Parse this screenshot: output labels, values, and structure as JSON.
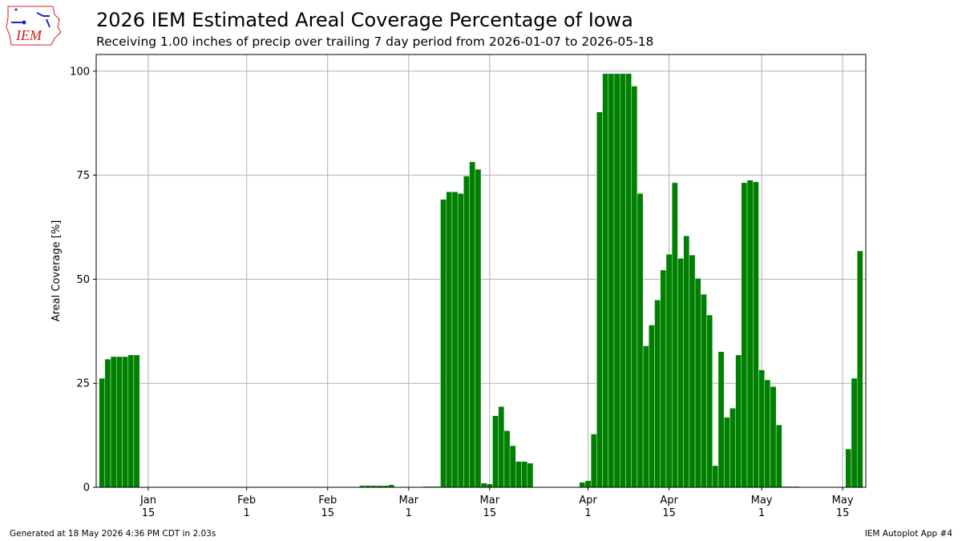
{
  "header": {
    "title": "2026 IEM Estimated Areal Coverage Percentage of Iowa",
    "subtitle": "Receiving 1.00 inches of precip over trailing 7 day period from 2026-01-07 to 2026-05-18"
  },
  "logo": {
    "text": "IEM",
    "icon": "iem-iowa-logo"
  },
  "footer": {
    "left": "Generated at 18 May 2026 4:36 PM CDT in 2.03s",
    "right": "IEM Autoplot App #4"
  },
  "colors": {
    "bar": "#008000",
    "grid": "#b0b0b0",
    "logo": "#cc2222",
    "logo_icon": "#2222cc"
  },
  "chart_data": {
    "type": "bar",
    "ylabel": "Areal Coverage [%]",
    "xlabel": "",
    "ylim": [
      0,
      104
    ],
    "xlim": [
      "2026-01-06",
      "2026-05-19"
    ],
    "grid": true,
    "yticks": [
      0,
      25,
      50,
      75,
      100
    ],
    "xticks": [
      {
        "date": "2026-01-15",
        "line1": "Jan",
        "line2": "15"
      },
      {
        "date": "2026-02-01",
        "line1": "Feb",
        "line2": "1"
      },
      {
        "date": "2026-02-15",
        "line1": "Feb",
        "line2": "15"
      },
      {
        "date": "2026-03-01",
        "line1": "Mar",
        "line2": "1"
      },
      {
        "date": "2026-03-15",
        "line1": "Mar",
        "line2": "15"
      },
      {
        "date": "2026-04-01",
        "line1": "Apr",
        "line2": "1"
      },
      {
        "date": "2026-04-15",
        "line1": "Apr",
        "line2": "15"
      },
      {
        "date": "2026-05-01",
        "line1": "May",
        "line2": "1"
      },
      {
        "date": "2026-05-15",
        "line1": "May",
        "line2": "15"
      }
    ],
    "start_date": "2026-01-07",
    "end_date": "2026-05-18",
    "values": [
      26.2,
      30.8,
      31.4,
      31.4,
      31.4,
      31.8,
      31.8,
      0.1,
      0.1,
      0.1,
      0.1,
      0.1,
      0.1,
      0.1,
      0.1,
      0.1,
      0.1,
      0.1,
      0.1,
      0.1,
      0.1,
      0.1,
      0.1,
      0.1,
      0.1,
      0.1,
      0.1,
      0.1,
      0.1,
      0.1,
      0.1,
      0.1,
      0.1,
      0.1,
      0.1,
      0.1,
      0.1,
      0.1,
      0.1,
      0.1,
      0.1,
      0.1,
      0.1,
      0.1,
      0.1,
      0.4,
      0.4,
      0.4,
      0.4,
      0.4,
      0.6,
      0.0,
      0.0,
      0.0,
      0.0,
      0.0,
      0.2,
      0.2,
      0.2,
      69.2,
      71.0,
      71.0,
      70.6,
      74.8,
      78.2,
      76.4,
      1.0,
      0.8,
      17.2,
      19.4,
      13.6,
      10.0,
      6.2,
      6.2,
      5.8,
      0.0,
      0.0,
      0.0,
      0.0,
      0.0,
      0.0,
      0.0,
      0.0,
      1.2,
      1.6,
      12.8,
      90.2,
      99.4,
      99.4,
      99.4,
      99.4,
      99.4,
      96.4,
      70.6,
      34.0,
      39.0,
      45.0,
      52.2,
      56.0,
      73.2,
      55.0,
      60.4,
      55.8,
      50.2,
      46.4,
      41.4,
      5.2,
      32.6,
      16.8,
      19.0,
      31.8,
      73.2,
      73.8,
      73.4,
      28.2,
      25.8,
      24.2,
      15.0,
      0.2,
      0.2,
      0.2,
      0.0,
      0.0,
      0.0,
      0.0,
      0.0,
      0.0,
      0.0,
      0.0,
      9.2,
      26.2,
      56.8
    ]
  }
}
